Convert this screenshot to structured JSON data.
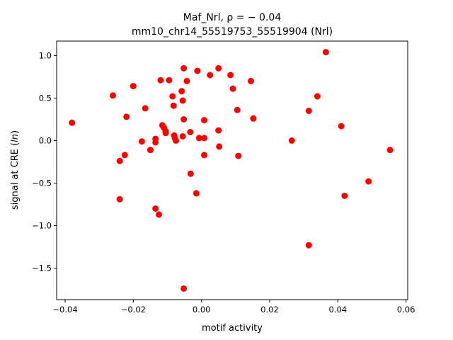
{
  "chart_data": {
    "type": "scatter",
    "title_line1": "Maf_Nrl, ρ = − 0.04",
    "title_line2": "mm10_chr14_55519753_55519904 (Nrl)",
    "xlabel": "motif activity",
    "ylabel": "signal at CRE (ln)",
    "xlim": [
      -0.0425,
      0.0605
    ],
    "ylim": [
      -1.87,
      1.17
    ],
    "x_ticks": [
      -0.04,
      -0.02,
      0.0,
      0.02,
      0.04,
      0.06
    ],
    "x_tick_labels": [
      "−0.04",
      "−0.02",
      "0.00",
      "0.02",
      "0.04",
      "0.06"
    ],
    "y_ticks": [
      -1.5,
      -1.0,
      -0.5,
      0.0,
      0.5,
      1.0
    ],
    "y_tick_labels": [
      "−1.5",
      "−1.0",
      "−0.5",
      "0.0",
      "0.5",
      "1.0"
    ],
    "grid": false,
    "marker_color": "#ff0000",
    "points": [
      {
        "x": -0.038,
        "y": 0.21
      },
      {
        "x": -0.026,
        "y": 0.53
      },
      {
        "x": -0.02,
        "y": 0.64
      },
      {
        "x": -0.022,
        "y": 0.28
      },
      {
        "x": -0.0165,
        "y": 0.38
      },
      {
        "x": -0.024,
        "y": -0.24
      },
      {
        "x": -0.0225,
        "y": -0.17
      },
      {
        "x": -0.024,
        "y": -0.69
      },
      {
        "x": -0.0175,
        "y": -0.01
      },
      {
        "x": -0.015,
        "y": -0.11
      },
      {
        "x": -0.0135,
        "y": -0.02
      },
      {
        "x": -0.0135,
        "y": 0.02
      },
      {
        "x": -0.0135,
        "y": -0.8
      },
      {
        "x": -0.0125,
        "y": -0.87
      },
      {
        "x": -0.012,
        "y": 0.71
      },
      {
        "x": -0.0115,
        "y": 0.18
      },
      {
        "x": -0.011,
        "y": 0.15
      },
      {
        "x": -0.0105,
        "y": 0.11
      },
      {
        "x": -0.0105,
        "y": 0.09
      },
      {
        "x": -0.0095,
        "y": 0.71
      },
      {
        "x": -0.0085,
        "y": 0.52
      },
      {
        "x": -0.0082,
        "y": 0.41
      },
      {
        "x": -0.008,
        "y": 0.06
      },
      {
        "x": -0.0078,
        "y": 0.03
      },
      {
        "x": -0.0075,
        "y": 0.0
      },
      {
        "x": -0.0058,
        "y": 0.58
      },
      {
        "x": -0.0055,
        "y": 0.47
      },
      {
        "x": -0.0052,
        "y": 0.85
      },
      {
        "x": -0.0052,
        "y": 0.25
      },
      {
        "x": -0.0055,
        "y": 0.05
      },
      {
        "x": -0.0043,
        "y": 0.7
      },
      {
        "x": -0.0033,
        "y": 0.1
      },
      {
        "x": -0.0032,
        "y": -0.39
      },
      {
        "x": -0.0052,
        "y": -1.74
      },
      {
        "x": -0.0012,
        "y": 0.82
      },
      {
        "x": -0.0015,
        "y": -0.62
      },
      {
        "x": -0.0007,
        "y": 0.03
      },
      {
        "x": 0.0008,
        "y": 0.24
      },
      {
        "x": 0.0008,
        "y": 0.03
      },
      {
        "x": 0.0008,
        "y": -0.17
      },
      {
        "x": 0.0025,
        "y": 0.77
      },
      {
        "x": 0.005,
        "y": 0.85
      },
      {
        "x": 0.005,
        "y": 0.12
      },
      {
        "x": 0.0052,
        "y": -0.07
      },
      {
        "x": 0.0085,
        "y": 0.77
      },
      {
        "x": 0.0092,
        "y": 0.61
      },
      {
        "x": 0.0105,
        "y": 0.36
      },
      {
        "x": 0.0108,
        "y": -0.18
      },
      {
        "x": 0.0145,
        "y": 0.7
      },
      {
        "x": 0.0152,
        "y": 0.26
      },
      {
        "x": 0.0265,
        "y": 0.0
      },
      {
        "x": 0.0315,
        "y": 0.35
      },
      {
        "x": 0.0315,
        "y": -1.23
      },
      {
        "x": 0.034,
        "y": 0.52
      },
      {
        "x": 0.0365,
        "y": 1.04
      },
      {
        "x": 0.041,
        "y": 0.17
      },
      {
        "x": 0.042,
        "y": -0.65
      },
      {
        "x": 0.049,
        "y": -0.48
      },
      {
        "x": 0.0553,
        "y": -0.11
      }
    ]
  }
}
